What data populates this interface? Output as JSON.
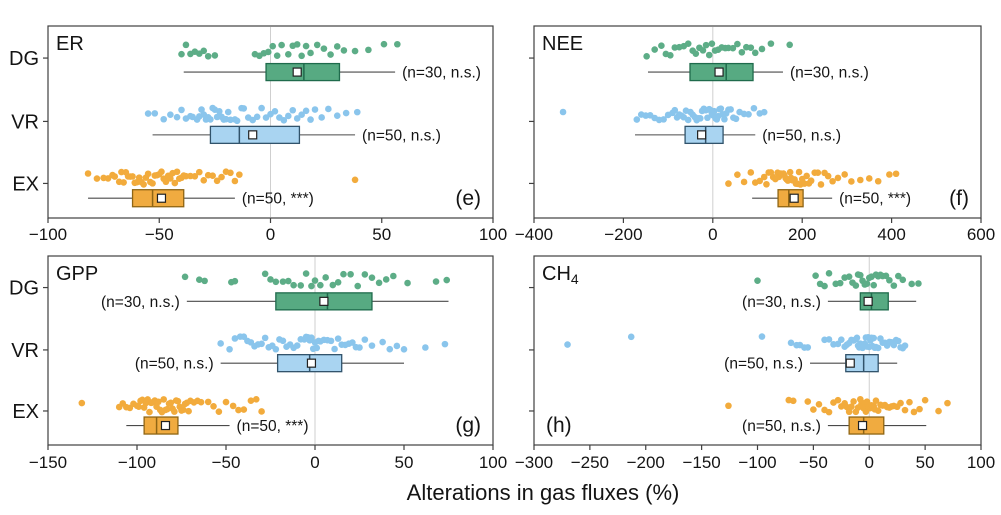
{
  "figure": {
    "xlabel": "Alterations in gas fluxes (%)",
    "row_labels": [
      "DG",
      "VR",
      "EX"
    ],
    "colors": {
      "green": {
        "point": "#5dad87",
        "box_fill": "#57aa82",
        "box_stroke": "#1f6b4c"
      },
      "blue": {
        "point": "#8ac5ec",
        "box_fill": "#a9d4f1",
        "box_stroke": "#31536b"
      },
      "orange": {
        "point": "#f2ab3c",
        "box_fill": "#f0ab40",
        "box_stroke": "#8f6514"
      },
      "gridline": "#cfcfcf",
      "whisker": "#4a4a4a",
      "frame": "#404040",
      "mean_marker_fill": "#ffffff",
      "mean_marker_stroke": "#222222"
    }
  },
  "chart_data": [
    {
      "id": "e",
      "type": "boxplot-jitter",
      "title": "ER",
      "title_sub": "",
      "letter": "(e)",
      "letter_side": "right",
      "xlim": [
        -100,
        100
      ],
      "xticks": [
        -100,
        -50,
        0,
        50,
        100
      ],
      "groups": [
        {
          "label": "DG",
          "color": "green",
          "n": 30,
          "significance": "n.s.",
          "annotation": "(n=30, n.s.)",
          "annotation_side": "right",
          "box": {
            "min": -39,
            "q1": -2,
            "median": 15,
            "q3": 31,
            "max": 56,
            "mean": 12
          },
          "points": [
            -40,
            -38,
            -36,
            -34,
            -32,
            -30,
            -28,
            -25,
            -7,
            -5,
            -3,
            -1,
            1,
            3,
            5,
            8,
            10,
            12,
            14,
            16,
            18,
            21,
            24,
            27,
            30,
            33,
            38,
            44,
            51,
            57
          ]
        },
        {
          "label": "VR",
          "color": "blue",
          "n": 50,
          "significance": "n.s.",
          "annotation": "(n=50, n.s.)",
          "annotation_side": "right",
          "box": {
            "min": -53,
            "q1": -27,
            "median": -14,
            "q3": 13,
            "max": 38,
            "mean": -8
          },
          "points": [
            -55,
            -52,
            -48,
            -45,
            -42,
            -40,
            -38,
            -36,
            -35,
            -33,
            -32,
            -31,
            -30,
            -29,
            -28,
            -27,
            -26,
            -25,
            -24,
            -23,
            -22,
            -21,
            -20,
            -19,
            -18,
            -16,
            -15,
            -13,
            -12,
            -10,
            -8,
            -6,
            -4,
            -2,
            0,
            2,
            4,
            6,
            8,
            10,
            12,
            14,
            16,
            18,
            20,
            23,
            26,
            30,
            34,
            39
          ]
        },
        {
          "label": "EX",
          "color": "orange",
          "n": 50,
          "significance": "***",
          "annotation": "(n=50, ***)",
          "annotation_side": "right",
          "box": {
            "min": -82,
            "q1": -62,
            "median": -53,
            "q3": -39,
            "max": -16,
            "mean": -49
          },
          "points": [
            -82,
            -78,
            -75,
            -73,
            -71,
            -70,
            -68,
            -67,
            -66,
            -65,
            -64,
            -63,
            -62,
            -61,
            -60,
            -59,
            -58,
            -57,
            -56,
            -55,
            -54,
            -53,
            -52,
            -51,
            -50,
            -49,
            -48,
            -47,
            -46,
            -45,
            -44,
            -43,
            -42,
            -41,
            -40,
            -39,
            -38,
            -36,
            -34,
            -32,
            -30,
            -28,
            -26,
            -24,
            -22,
            -20,
            -18,
            -16,
            -14,
            38
          ]
        }
      ]
    },
    {
      "id": "f",
      "type": "boxplot-jitter",
      "title": "NEE",
      "title_sub": "",
      "letter": "(f)",
      "letter_side": "right",
      "xlim": [
        -400,
        600
      ],
      "xticks": [
        -400,
        -200,
        0,
        200,
        400,
        600
      ],
      "groups": [
        {
          "label": "DG",
          "color": "green",
          "n": 30,
          "significance": "n.s.",
          "annotation": "(n=30, n.s.)",
          "annotation_side": "right",
          "box": {
            "min": -145,
            "q1": -51,
            "median": 30,
            "q3": 90,
            "max": 157,
            "mean": 14
          },
          "points": [
            -148,
            -130,
            -115,
            -105,
            -95,
            -85,
            -75,
            -65,
            -55,
            -45,
            -38,
            -30,
            -22,
            -15,
            -8,
            -2,
            5,
            12,
            20,
            28,
            35,
            45,
            55,
            65,
            75,
            85,
            95,
            110,
            130,
            172
          ]
        },
        {
          "label": "VR",
          "color": "blue",
          "n": 50,
          "significance": "n.s.",
          "annotation": "(n=50, n.s.)",
          "annotation_side": "right",
          "box": {
            "min": -174,
            "q1": -62,
            "median": -16,
            "q3": 23,
            "max": 95,
            "mean": -25
          },
          "points": [
            -335,
            -170,
            -160,
            -150,
            -140,
            -130,
            -120,
            -110,
            -100,
            -90,
            -85,
            -80,
            -75,
            -70,
            -65,
            -60,
            -55,
            -50,
            -45,
            -40,
            -36,
            -32,
            -28,
            -24,
            -20,
            -16,
            -12,
            -8,
            -5,
            -2,
            0,
            3,
            6,
            9,
            12,
            15,
            18,
            22,
            26,
            30,
            35,
            40,
            46,
            52,
            60,
            70,
            80,
            92,
            105,
            115
          ]
        },
        {
          "label": "EX",
          "color": "orange",
          "n": 50,
          "significance": "***",
          "annotation": "(n=50, ***)",
          "annotation_side": "right",
          "box": {
            "min": 88,
            "q1": 146,
            "median": 170,
            "q3": 202,
            "max": 267,
            "mean": 182
          },
          "points": [
            35,
            55,
            70,
            85,
            95,
            105,
            115,
            120,
            125,
            130,
            135,
            140,
            145,
            148,
            152,
            155,
            158,
            160,
            163,
            165,
            168,
            170,
            173,
            175,
            178,
            180,
            183,
            186,
            190,
            193,
            196,
            200,
            205,
            210,
            215,
            220,
            228,
            235,
            242,
            250,
            258,
            268,
            280,
            295,
            310,
            330,
            350,
            370,
            395,
            410
          ]
        }
      ]
    },
    {
      "id": "g",
      "type": "boxplot-jitter",
      "title": "GPP",
      "title_sub": "",
      "letter": "(g)",
      "letter_side": "right",
      "xlim": [
        -150,
        100
      ],
      "xticks": [
        -150,
        -100,
        -50,
        0,
        50,
        100
      ],
      "groups": [
        {
          "label": "DG",
          "color": "green",
          "n": 30,
          "significance": "n.s.",
          "annotation": "(n=30, n.s.)",
          "annotation_side": "left",
          "box": {
            "min": -72,
            "q1": -22,
            "median": 7,
            "q3": 32,
            "max": 75,
            "mean": 5
          },
          "points": [
            -73,
            -65,
            -62,
            -47,
            -45,
            -28,
            -25,
            -22,
            -18,
            -15,
            -12,
            -8,
            -5,
            -2,
            0,
            3,
            6,
            10,
            13,
            16,
            20,
            24,
            28,
            32,
            36,
            40,
            44,
            52,
            68,
            74
          ]
        },
        {
          "label": "VR",
          "color": "blue",
          "n": 50,
          "significance": "n.s.",
          "annotation": "(n=50, n.s.)",
          "annotation_side": "left",
          "box": {
            "min": -53,
            "q1": -21,
            "median": -3,
            "q3": 15,
            "max": 50,
            "mean": -2
          },
          "points": [
            -53,
            -48,
            -45,
            -42,
            -40,
            -38,
            -36,
            -34,
            -32,
            -30,
            -28,
            -26,
            -24,
            -22,
            -20,
            -18,
            -16,
            -14,
            -12,
            -10,
            -8,
            -6,
            -5,
            -4,
            -3,
            -2,
            -1,
            0,
            1,
            2,
            3,
            5,
            7,
            9,
            11,
            13,
            15,
            17,
            19,
            21,
            23,
            25,
            28,
            32,
            38,
            42,
            46,
            50,
            62,
            73
          ]
        },
        {
          "label": "EX",
          "color": "orange",
          "n": 50,
          "significance": "***",
          "annotation": "(n=50, ***)",
          "annotation_side": "right",
          "box": {
            "min": -106,
            "q1": -96,
            "median": -89,
            "q3": -77,
            "max": -48,
            "mean": -84
          },
          "points": [
            -131,
            -110,
            -108,
            -106,
            -104,
            -102,
            -100,
            -99,
            -98,
            -97,
            -96,
            -95,
            -94,
            -93,
            -92,
            -91,
            -90,
            -89,
            -88,
            -87,
            -86,
            -85,
            -84,
            -83,
            -82,
            -81,
            -80,
            -79,
            -78,
            -77,
            -76,
            -75,
            -74,
            -73,
            -72,
            -71,
            -70,
            -68,
            -66,
            -64,
            -60,
            -57,
            -54,
            -50,
            -46,
            -43,
            -40,
            -36,
            -33,
            -30
          ]
        }
      ]
    },
    {
      "id": "h",
      "type": "boxplot-jitter",
      "title": "CH",
      "title_sub": "4",
      "letter": "(h)",
      "letter_side": "left",
      "xlim": [
        -300,
        100
      ],
      "xticks": [
        -300,
        -250,
        -200,
        -150,
        -100,
        -50,
        0,
        50,
        100
      ],
      "groups": [
        {
          "label": "DG",
          "color": "green",
          "n": 30,
          "significance": "n.s.",
          "annotation": "(n=30, n.s.)",
          "annotation_side": "left",
          "box": {
            "min": -37,
            "q1": -8,
            "median": 2,
            "q3": 17,
            "max": 42,
            "mean": -1
          },
          "points": [
            -100,
            -48,
            -44,
            -40,
            -36,
            -30,
            -26,
            -22,
            -18,
            -15,
            -12,
            -10,
            -8,
            -6,
            -4,
            -2,
            0,
            2,
            4,
            6,
            8,
            10,
            12,
            15,
            18,
            22,
            26,
            30,
            38,
            44
          ]
        },
        {
          "label": "VR",
          "color": "blue",
          "n": 50,
          "significance": "n.s.",
          "annotation": "(n=50, n.s.)",
          "annotation_side": "left",
          "box": {
            "min": -53,
            "q1": -21,
            "median": -5,
            "q3": 8,
            "max": 25,
            "mean": -17
          },
          "points": [
            -270,
            -213,
            -96,
            -70,
            -65,
            -62,
            -58,
            -55,
            -40,
            -36,
            -32,
            -28,
            -25,
            -22,
            -20,
            -18,
            -16,
            -14,
            -12,
            -11,
            -10,
            -9,
            -8,
            -7,
            -6,
            -5,
            -4,
            -3,
            -2,
            -1,
            0,
            1,
            2,
            3,
            4,
            5,
            6,
            8,
            10,
            12,
            14,
            16,
            18,
            20,
            22,
            24,
            26,
            28,
            30,
            32
          ]
        },
        {
          "label": "EX",
          "color": "orange",
          "n": 50,
          "significance": "n.s.",
          "annotation": "(n=50, n.s.)",
          "annotation_side": "left",
          "box": {
            "min": -37,
            "q1": -18,
            "median": -5,
            "q3": 13,
            "max": 51,
            "mean": -6
          },
          "points": [
            -126,
            -72,
            -68,
            -55,
            -50,
            -45,
            -40,
            -36,
            -32,
            -28,
            -25,
            -22,
            -20,
            -18,
            -16,
            -14,
            -12,
            -10,
            -8,
            -7,
            -6,
            -5,
            -4,
            -3,
            -2,
            -1,
            0,
            1,
            2,
            3,
            4,
            5,
            6,
            8,
            10,
            12,
            14,
            16,
            18,
            20,
            22,
            25,
            28,
            32,
            36,
            40,
            45,
            50,
            62,
            70
          ]
        }
      ]
    }
  ]
}
